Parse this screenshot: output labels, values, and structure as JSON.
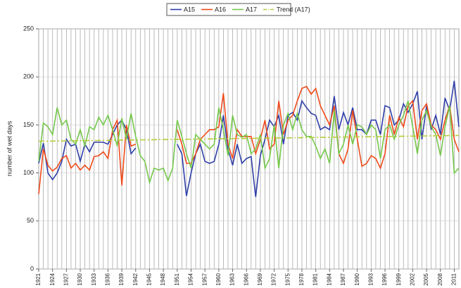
{
  "chart_data": {
    "type": "line",
    "y_label": "number of wet days",
    "x": [
      1921,
      1922,
      1923,
      1924,
      1925,
      1926,
      1927,
      1928,
      1929,
      1930,
      1931,
      1932,
      1933,
      1934,
      1935,
      1936,
      1937,
      1938,
      1939,
      1940,
      1941,
      1942,
      1943,
      1944,
      1945,
      1946,
      1947,
      1948,
      1949,
      1950,
      1951,
      1952,
      1953,
      1954,
      1955,
      1956,
      1957,
      1958,
      1959,
      1960,
      1961,
      1962,
      1963,
      1964,
      1965,
      1966,
      1967,
      1968,
      1969,
      1970,
      1971,
      1972,
      1973,
      1974,
      1975,
      1976,
      1977,
      1978,
      1979,
      1980,
      1981,
      1982,
      1983,
      1984,
      1985,
      1986,
      1987,
      1988,
      1989,
      1990,
      1991,
      1992,
      1993,
      1994,
      1995,
      1996,
      1997,
      1998,
      1999,
      2000,
      2001,
      2002,
      2003,
      2004,
      2005,
      2006,
      2007,
      2008,
      2009,
      2010,
      2011,
      2012
    ],
    "series": [
      {
        "name": "A15",
        "color": "#2e3ea8",
        "values": [
          110,
          131,
          100,
          93,
          100,
          112,
          135,
          128,
          130,
          112,
          130,
          122,
          132,
          132,
          132,
          130,
          140,
          150,
          155,
          145,
          120,
          126,
          null,
          null,
          null,
          null,
          null,
          null,
          null,
          null,
          130,
          120,
          76,
          100,
          120,
          130,
          112,
          110,
          112,
          130,
          160,
          125,
          108,
          130,
          110,
          115,
          117,
          75,
          118,
          135,
          155,
          148,
          160,
          130,
          160,
          163,
          155,
          175,
          168,
          162,
          160,
          145,
          148,
          145,
          180,
          145,
          163,
          150,
          168,
          145,
          145,
          140,
          155,
          155,
          140,
          170,
          168,
          150,
          155,
          172,
          163,
          172,
          185,
          135,
          170,
          145,
          160,
          140,
          178,
          165,
          196,
          148
        ]
      },
      {
        "name": "A16",
        "color": "#f04a1a",
        "values": [
          78,
          125,
          108,
          102,
          106,
          115,
          118,
          105,
          110,
          103,
          108,
          103,
          117,
          118,
          122,
          115,
          145,
          155,
          87,
          150,
          128,
          130,
          null,
          null,
          null,
          null,
          null,
          null,
          null,
          null,
          145,
          130,
          110,
          110,
          120,
          135,
          140,
          145,
          145,
          148,
          183,
          130,
          115,
          145,
          138,
          138,
          138,
          120,
          135,
          155,
          125,
          130,
          175,
          140,
          155,
          160,
          175,
          188,
          190,
          182,
          188,
          170,
          160,
          150,
          170,
          120,
          110,
          125,
          165,
          135,
          107,
          110,
          118,
          115,
          105,
          120,
          160,
          140,
          158,
          148,
          170,
          175,
          135,
          165,
          172,
          150,
          145,
          135,
          155,
          170,
          135,
          122
        ]
      },
      {
        "name": "A17",
        "color": "#74c84a",
        "values": [
          112,
          152,
          148,
          140,
          168,
          150,
          155,
          135,
          130,
          145,
          128,
          148,
          145,
          158,
          150,
          160,
          145,
          128,
          157,
          135,
          162,
          138,
          118,
          112,
          90,
          105,
          103,
          105,
          92,
          105,
          155,
          138,
          120,
          105,
          140,
          135,
          130,
          125,
          130,
          168,
          145,
          118,
          160,
          140,
          137,
          140,
          120,
          125,
          140,
          105,
          115,
          150,
          105,
          150,
          162,
          145,
          162,
          145,
          138,
          138,
          128,
          115,
          125,
          110,
          165,
          120,
          130,
          150,
          130,
          150,
          148,
          140,
          150,
          145,
          115,
          145,
          150,
          135,
          150,
          160,
          175,
          148,
          120,
          155,
          165,
          148,
          140,
          118,
          148,
          170,
          100,
          105
        ]
      },
      {
        "name": "Trend (A17)",
        "color": "#b8cc3a",
        "linestyle": "dashdot",
        "x": [
          1921,
          2012
        ],
        "values": [
          133,
          139
        ]
      }
    ],
    "xlim": [
      1921,
      2012
    ],
    "xticks": [
      1921,
      1924,
      1927,
      1930,
      1933,
      1936,
      1939,
      1942,
      1945,
      1948,
      1951,
      1954,
      1957,
      1960,
      1963,
      1966,
      1969,
      1972,
      1975,
      1978,
      1981,
      1984,
      1987,
      1990,
      1993,
      1996,
      1999,
      2002,
      2005,
      2008,
      2011
    ],
    "ylim": [
      0,
      250
    ],
    "yticks": [
      0,
      50,
      100,
      150,
      200,
      250
    ],
    "grid": true,
    "legend": "top"
  }
}
